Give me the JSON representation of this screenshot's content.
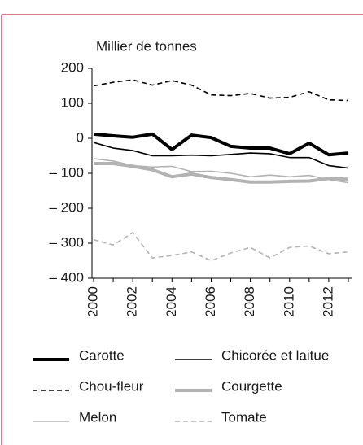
{
  "chart_data": {
    "type": "line",
    "ylabel": "Millier de tonnes",
    "categories": [
      "2000",
      null,
      "2002",
      null,
      "2004",
      null,
      "2006",
      null,
      "2008",
      null,
      "2010",
      null,
      "2012",
      null
    ],
    "ylim": [
      -400,
      200
    ],
    "yticks": [
      {
        "value": -400,
        "label": "– 400"
      },
      {
        "value": -300,
        "label": "– 300"
      },
      {
        "value": -200,
        "label": "– 200"
      },
      {
        "value": -100,
        "label": "– 100"
      },
      0,
      100,
      200
    ],
    "series": [
      {
        "name": "Carotte",
        "color": "#000000",
        "linestyle": "solid",
        "linewidth": "thick",
        "values": [
          12,
          7,
          3,
          12,
          -32,
          9,
          2,
          -23,
          -28,
          -28,
          -44,
          -14,
          -47,
          -42
        ]
      },
      {
        "name": "Chicorée et laitue",
        "color": "#000000",
        "linestyle": "solid",
        "linewidth": "thin",
        "values": [
          -12,
          -28,
          -35,
          -50,
          -50,
          -48,
          -50,
          -46,
          -42,
          -44,
          -55,
          -55,
          -78,
          -85
        ]
      },
      {
        "name": "Chou-fleur",
        "color": "#000000",
        "linestyle": "dashed",
        "linewidth": "thin",
        "values": [
          150,
          160,
          167,
          152,
          165,
          152,
          124,
          122,
          128,
          115,
          117,
          133,
          110,
          108
        ]
      },
      {
        "name": "Courgette",
        "color": "#b3b3b3",
        "linestyle": "solid",
        "linewidth": "thick",
        "values": [
          -72,
          -72,
          -80,
          -90,
          -110,
          -102,
          -112,
          -118,
          -125,
          -125,
          -123,
          -122,
          -115,
          -117
        ]
      },
      {
        "name": "Melon",
        "color": "#b3b3b3",
        "linestyle": "solid",
        "linewidth": "thin",
        "values": [
          -58,
          -65,
          -78,
          -82,
          -80,
          -95,
          -94,
          -100,
          -110,
          -105,
          -110,
          -106,
          -118,
          -127
        ]
      },
      {
        "name": "Tomate",
        "color": "#b3b3b3",
        "linestyle": "dashed",
        "linewidth": "thin",
        "values": [
          -290,
          -305,
          -270,
          -342,
          -335,
          -325,
          -350,
          -328,
          -312,
          -342,
          -312,
          -308,
          -330,
          -325
        ]
      }
    ]
  }
}
